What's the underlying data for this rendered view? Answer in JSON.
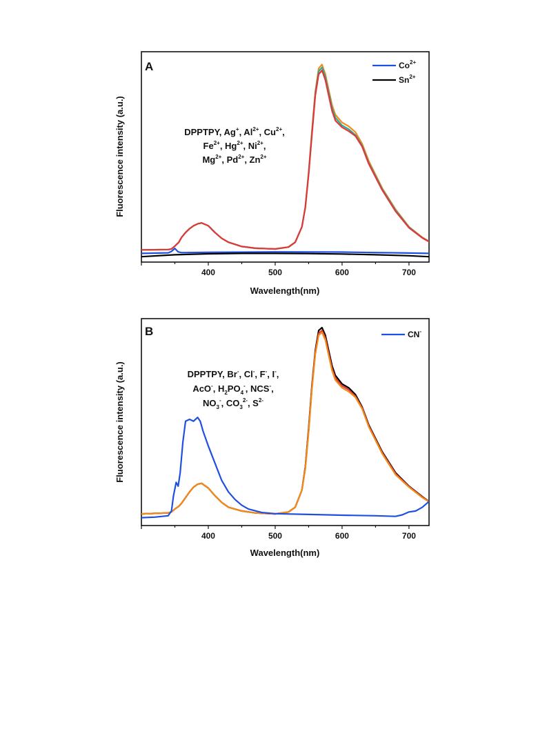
{
  "chart_data": [
    {
      "type": "line",
      "panel_label": "A",
      "xlabel": "Wavelength(nm)",
      "ylabel": "Fluorescence intensity (a.u.)",
      "xlim": [
        300,
        730
      ],
      "ylim": [
        0,
        100
      ],
      "xticks": [
        400,
        500,
        600,
        700
      ],
      "yticks_visible": false,
      "grid": false,
      "legend_placement": "top-right",
      "legend": [
        {
          "label": "Co2+",
          "base": "Co",
          "sup": "2+",
          "color": "#1f4fe0"
        },
        {
          "label": "Sn2+",
          "base": "Sn",
          "sup": "2+",
          "color": "#000000"
        }
      ],
      "annotation_lines": [
        [
          [
            "DPPTPY, Ag",
            ""
          ],
          [
            "+",
            "sup"
          ],
          [
            ", Al",
            ""
          ],
          [
            "2+",
            "sup"
          ],
          [
            ", Cu",
            ""
          ],
          [
            "2+",
            "sup"
          ],
          [
            ",",
            ""
          ]
        ],
        [
          [
            "Fe",
            ""
          ],
          [
            "2+",
            "sup"
          ],
          [
            ", Hg",
            ""
          ],
          [
            "2+",
            "sup"
          ],
          [
            ", Ni",
            ""
          ],
          [
            "2+",
            "sup"
          ],
          [
            ",",
            ""
          ]
        ],
        [
          [
            "Mg",
            ""
          ],
          [
            "2+",
            "sup"
          ],
          [
            ", Pd",
            ""
          ],
          [
            "2+",
            "sup"
          ],
          [
            ", Zn",
            ""
          ],
          [
            "2+",
            "sup"
          ]
        ]
      ],
      "series": [
        {
          "color": "#f08c1a",
          "x": [
            300,
            340,
            345,
            350,
            356,
            360,
            366,
            372,
            378,
            384,
            390,
            400,
            410,
            420,
            430,
            450,
            470,
            500,
            520,
            530,
            540,
            545,
            550,
            555,
            560,
            565,
            570,
            575,
            580,
            585,
            590,
            600,
            610,
            620,
            630,
            640,
            660,
            680,
            700,
            720,
            730
          ],
          "y": [
            2,
            2.2,
            2.5,
            4,
            6,
            8.5,
            11,
            13,
            14.5,
            15.5,
            16,
            14.5,
            11,
            8,
            6,
            3.8,
            2.9,
            2.5,
            3.5,
            6,
            14,
            24,
            42,
            64,
            84,
            96,
            98,
            93,
            85,
            77,
            72,
            68,
            66,
            63,
            57,
            48,
            34,
            23,
            14,
            8.5,
            6.5
          ]
        },
        {
          "color": "#2aa89a",
          "x": [
            300,
            340,
            345,
            350,
            356,
            360,
            366,
            372,
            378,
            384,
            390,
            400,
            410,
            420,
            430,
            450,
            470,
            500,
            520,
            530,
            540,
            545,
            550,
            555,
            560,
            565,
            570,
            575,
            580,
            585,
            590,
            600,
            610,
            620,
            630,
            640,
            660,
            680,
            700,
            720,
            730
          ],
          "y": [
            2,
            2.2,
            2.5,
            4,
            6,
            8.5,
            11,
            13,
            14.5,
            15.5,
            16,
            14.5,
            11,
            8,
            6,
            3.8,
            2.9,
            2.5,
            3.5,
            6,
            14,
            24,
            41.5,
            63,
            83,
            94.5,
            96.5,
            91.5,
            83.5,
            75.5,
            70.5,
            66.5,
            64.5,
            61.5,
            56,
            47,
            33.5,
            22.5,
            13.8,
            8.3,
            6.4
          ]
        },
        {
          "color": "#e0383a",
          "x": [
            300,
            340,
            345,
            350,
            356,
            360,
            366,
            372,
            378,
            384,
            390,
            400,
            410,
            420,
            430,
            450,
            470,
            500,
            520,
            530,
            540,
            545,
            550,
            555,
            560,
            565,
            570,
            575,
            580,
            585,
            590,
            600,
            610,
            620,
            630,
            640,
            660,
            680,
            700,
            720,
            730
          ],
          "y": [
            2,
            2.2,
            2.5,
            4,
            6,
            8.5,
            11,
            13,
            14.5,
            15.5,
            16,
            14.5,
            11,
            8,
            6,
            3.8,
            2.9,
            2.5,
            3.5,
            6,
            14,
            24,
            41,
            62,
            82,
            93,
            95,
            90,
            82,
            74,
            69,
            65.5,
            63.5,
            61,
            55.5,
            46.5,
            33,
            22,
            13.5,
            8.2,
            6.3
          ]
        },
        {
          "color": "#1f4fe0",
          "x": [
            300,
            340,
            345,
            350,
            355,
            360,
            400,
            500,
            600,
            700,
            730
          ],
          "y": [
            0.2,
            0.5,
            1.2,
            2.8,
            1.0,
            0.6,
            0.8,
            1.0,
            0.9,
            0.4,
            0.2
          ]
        },
        {
          "color": "#000000",
          "x": [
            300,
            350,
            400,
            450,
            500,
            550,
            600,
            650,
            700,
            730
          ],
          "y": [
            -1.5,
            -0.5,
            0.0,
            0.2,
            0.2,
            0.1,
            -0.1,
            -0.5,
            -1.0,
            -1.5
          ]
        }
      ]
    },
    {
      "type": "line",
      "panel_label": "B",
      "xlabel": "Wavelength(nm)",
      "ylabel": "Fluorescence intensity (a.u.)",
      "xlim": [
        300,
        730
      ],
      "ylim": [
        0,
        100
      ],
      "xticks": [
        400,
        500,
        600,
        700
      ],
      "yticks_visible": false,
      "grid": false,
      "legend_placement": "top-right",
      "legend": [
        {
          "label": "CN-",
          "base": "CN",
          "sup": "-",
          "color": "#1f4fe0"
        }
      ],
      "annotation_lines": [
        [
          [
            "DPPTPY, Br",
            ""
          ],
          [
            "-",
            "sup"
          ],
          [
            ", Cl",
            ""
          ],
          [
            "-",
            "sup"
          ],
          [
            ", F",
            ""
          ],
          [
            "-",
            "sup"
          ],
          [
            ", I",
            ""
          ],
          [
            "-",
            "sup"
          ],
          [
            ",",
            ""
          ]
        ],
        [
          [
            "AcO",
            ""
          ],
          [
            "-",
            "sup"
          ],
          [
            ", H",
            ""
          ],
          [
            "2",
            "sub"
          ],
          [
            "PO",
            ""
          ],
          [
            "4",
            "sub"
          ],
          [
            "-",
            "sup"
          ],
          [
            ", NCS",
            ""
          ],
          [
            "-",
            "sup"
          ],
          [
            ",",
            ""
          ]
        ],
        [
          [
            "NO",
            ""
          ],
          [
            "3",
            "sub"
          ],
          [
            "-",
            "sup"
          ],
          [
            ", CO",
            ""
          ],
          [
            "3",
            "sub"
          ],
          [
            "2-",
            "sup"
          ],
          [
            ", S",
            ""
          ],
          [
            "2-",
            "sup"
          ]
        ]
      ],
      "series": [
        {
          "color": "#000000",
          "x": [
            300,
            340,
            345,
            350,
            356,
            360,
            366,
            372,
            378,
            384,
            390,
            400,
            410,
            420,
            430,
            450,
            470,
            500,
            520,
            530,
            540,
            545,
            550,
            555,
            560,
            565,
            570,
            575,
            580,
            585,
            590,
            600,
            610,
            620,
            630,
            640,
            660,
            680,
            700,
            720,
            730
          ],
          "y": [
            2.5,
            3,
            3.5,
            5,
            6.5,
            8,
            11,
            14,
            16.5,
            18,
            18.5,
            16,
            12,
            8.5,
            6,
            4,
            3,
            2.5,
            3.5,
            6,
            15,
            27,
            47,
            70,
            88,
            98.5,
            100,
            96,
            88,
            80,
            75,
            70.5,
            68.5,
            65,
            58.5,
            49,
            35,
            24,
            17,
            11.5,
            9
          ]
        },
        {
          "color": "#e0383a",
          "x": [
            300,
            340,
            345,
            350,
            356,
            360,
            366,
            372,
            378,
            384,
            390,
            400,
            410,
            420,
            430,
            450,
            470,
            500,
            520,
            530,
            540,
            545,
            550,
            555,
            560,
            565,
            570,
            575,
            580,
            585,
            590,
            600,
            610,
            620,
            630,
            640,
            660,
            680,
            700,
            720,
            730
          ],
          "y": [
            2.5,
            3,
            3.5,
            5,
            6.5,
            8,
            11,
            14,
            16.5,
            18,
            18.5,
            16,
            12,
            8.5,
            6,
            4,
            3,
            2.5,
            3.5,
            6,
            15,
            26.5,
            46,
            69,
            87,
            97,
            98.5,
            94.5,
            86.5,
            78.5,
            73.5,
            69.5,
            67.5,
            64,
            58,
            48.5,
            34.5,
            23.5,
            16.8,
            11.3,
            8.9
          ]
        },
        {
          "color": "#f08c1a",
          "x": [
            300,
            340,
            345,
            350,
            356,
            360,
            366,
            372,
            378,
            384,
            390,
            400,
            410,
            420,
            430,
            450,
            470,
            500,
            520,
            530,
            540,
            545,
            550,
            555,
            560,
            565,
            570,
            575,
            580,
            585,
            590,
            600,
            610,
            620,
            630,
            640,
            660,
            680,
            700,
            720,
            730
          ],
          "y": [
            2.5,
            3,
            3.5,
            5,
            6.5,
            8,
            11,
            14,
            16.5,
            18,
            18.5,
            16,
            12,
            8.5,
            6,
            4,
            3,
            2.5,
            3.5,
            6,
            15,
            26,
            45,
            68,
            86,
            96,
            97.5,
            93.5,
            85.5,
            77.5,
            72.5,
            68.5,
            66.5,
            63.5,
            57.5,
            48,
            34,
            23,
            16.5,
            11,
            8.8
          ]
        },
        {
          "color": "#1f4fe0",
          "x": [
            300,
            320,
            340,
            345,
            348,
            352,
            355,
            358,
            362,
            366,
            372,
            378,
            384,
            388,
            392,
            400,
            410,
            420,
            430,
            440,
            450,
            460,
            480,
            500,
            550,
            600,
            650,
            680,
            690,
            700,
            710,
            720,
            730
          ],
          "y": [
            0.5,
            0.8,
            1.5,
            4,
            12,
            19,
            17,
            24,
            40,
            51,
            52,
            51,
            53,
            51,
            46,
            38,
            29,
            20,
            14,
            10,
            7,
            5,
            3.2,
            2.6,
            2.2,
            1.8,
            1.5,
            1.2,
            2,
            3.5,
            4,
            6,
            9
          ]
        }
      ]
    }
  ]
}
